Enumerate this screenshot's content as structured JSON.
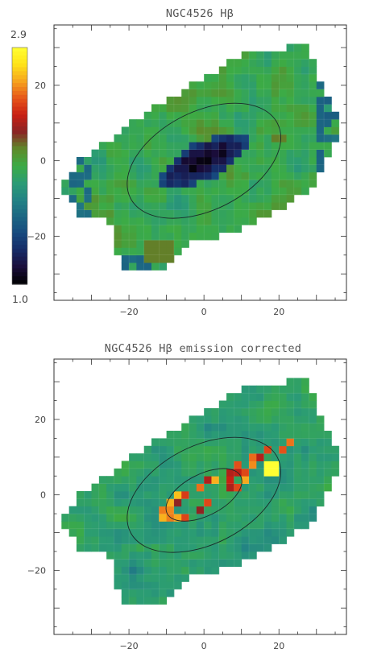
{
  "chart_data": [
    {
      "type": "heatmap",
      "title": "NGC4526 Hβ",
      "xlabel": "",
      "ylabel": "",
      "xlim": [
        -40,
        38
      ],
      "ylim": [
        -37,
        36
      ],
      "xticks": [
        -20,
        0,
        20
      ],
      "yticks": [
        -20,
        0,
        20
      ],
      "tick_labels": {
        "x": [
          "−20",
          "0",
          "20"
        ],
        "y": [
          "−20",
          "0",
          "20"
        ]
      },
      "map_type": "absorption",
      "features": {
        "central_depression_level": 1.0,
        "background_level": 1.9,
        "edge_level": 1.6,
        "green_blob_levels": [
          2.0,
          2.1
        ]
      },
      "grid": true
    },
    {
      "type": "heatmap",
      "title": "NGC4526 Hβ emission corrected",
      "xlabel": "",
      "ylabel": "",
      "xlim": [
        -40,
        38
      ],
      "ylim": [
        -37,
        36
      ],
      "xticks": [
        -20,
        0,
        20
      ],
      "yticks": [
        -20,
        0,
        20
      ],
      "tick_labels": {
        "x": [
          "−20",
          "0",
          "20"
        ],
        "y": [
          "−20",
          "0",
          "20"
        ]
      },
      "map_type": "emission_corrected",
      "features": {
        "ring_level": 2.5,
        "hotspot_level": 2.9,
        "background_level": 1.85
      },
      "grid": true
    }
  ],
  "colorbar": {
    "min_label": "1.0",
    "max_label": "2.9",
    "min": 1.0,
    "max": 2.9,
    "colors": [
      "#000000",
      "#1a0d3a",
      "#162a66",
      "#17497e",
      "#1c6783",
      "#238384",
      "#2b9c74",
      "#3cab45",
      "#5e8a2a",
      "#8a2424",
      "#c81f14",
      "#e6561a",
      "#f6a41e",
      "#ffe318",
      "#ffff33"
    ]
  }
}
